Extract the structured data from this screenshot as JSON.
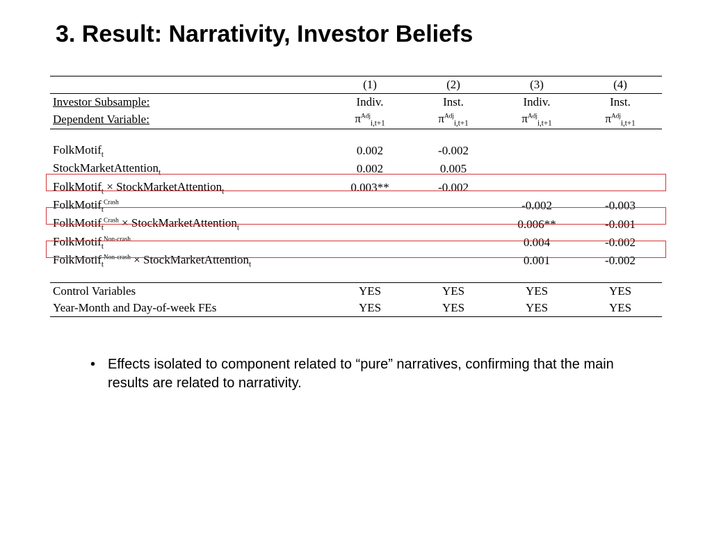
{
  "title": "3. Result: Narrativity, Investor Beliefs",
  "table": {
    "col_numbers": [
      "(1)",
      "(2)",
      "(3)",
      "(4)"
    ],
    "subsample_label": "Investor Subsample:",
    "subsamples": [
      "Indiv.",
      "Inst.",
      "Indiv.",
      "Inst."
    ],
    "depvar_label": "Dependent Variable:",
    "depvar_symbol": "π",
    "depvar_sup": "Adj",
    "depvar_sub": "i,t+1",
    "rows": [
      {
        "label_main": "FolkMotif",
        "label_sub": "t",
        "label_sup": "",
        "label_tail": "",
        "vals": [
          "0.002",
          "-0.002",
          "",
          ""
        ]
      },
      {
        "label_main": "StockMarketAttention",
        "label_sub": "t",
        "label_sup": "",
        "label_tail": "",
        "vals": [
          "0.002",
          "0.005",
          "",
          ""
        ]
      },
      {
        "label_main": "FolkMotif",
        "label_sub": "t",
        "label_sup": "",
        "label_tail": " × StockMarketAttention",
        "tail_sub": "t",
        "vals": [
          "0.003**",
          "-0.002",
          "",
          ""
        ]
      },
      {
        "label_main": "FolkMotif",
        "label_sub": "t",
        "label_sup": "Crash",
        "label_tail": "",
        "vals": [
          "",
          "",
          "-0.002",
          "-0.003"
        ]
      },
      {
        "label_main": "FolkMotif",
        "label_sub": "t",
        "label_sup": "Crash",
        "label_tail": " × StockMarketAttention",
        "tail_sub": "t",
        "vals": [
          "",
          "",
          "0.006**",
          "-0.001"
        ]
      },
      {
        "label_main": "FolkMotif",
        "label_sub": "t",
        "label_sup": "Non-crash",
        "label_tail": "",
        "vals": [
          "",
          "",
          "0.004",
          "-0.002"
        ]
      },
      {
        "label_main": "FolkMotif",
        "label_sub": "t",
        "label_sup": "Non-crash",
        "label_tail": " × StockMarketAttention",
        "tail_sub": "t",
        "vals": [
          "",
          "",
          "0.001",
          "-0.002"
        ]
      }
    ],
    "control_rows": [
      {
        "label": "Control Variables",
        "vals": [
          "YES",
          "YES",
          "YES",
          "YES"
        ]
      },
      {
        "label": "Year-Month and Day-of-week FEs",
        "vals": [
          "YES",
          "YES",
          "YES",
          "YES"
        ]
      }
    ],
    "highlight_offsets": [
      141,
      189,
      237
    ],
    "highlight_color": "#d1383c"
  },
  "bullet_text": "Effects isolated to component related to “pure” narratives, confirming that the main results are related to narrativity."
}
